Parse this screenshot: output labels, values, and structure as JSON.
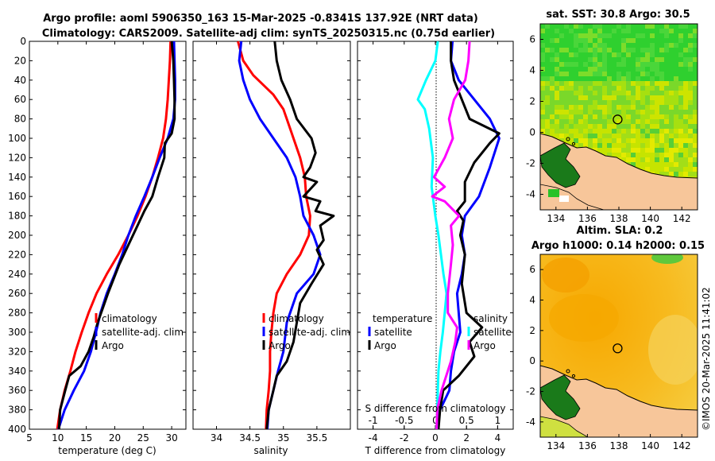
{
  "title_line1": "Argo profile: aoml 5906350_163 15-Mar-2025 -0.8341S 137.92E (NRT data)",
  "title_line2": "Climatology: CARS2009. Satellite-adj clim: synTS_20250315.nc (0.75d earlier)",
  "copyright": "©IMOS 20-Mar-2025 11:41:02",
  "colors": {
    "red": "#ff0000",
    "blue": "#0000ff",
    "black": "#000000",
    "cyan": "#00ffff",
    "magenta": "#ff00ff",
    "land": "#f7c69a"
  },
  "chart_data": [
    {
      "id": "temperature",
      "type": "line",
      "xlabel": "temperature (deg C)",
      "ylim": [
        400,
        0
      ],
      "xlim": [
        5,
        32.5
      ],
      "xticks": [
        5,
        10,
        15,
        20,
        25,
        30
      ],
      "yticks": [
        0,
        20,
        40,
        60,
        80,
        100,
        120,
        140,
        160,
        180,
        200,
        220,
        240,
        260,
        280,
        300,
        320,
        340,
        360,
        380,
        400
      ],
      "legend": [
        "climatology",
        "satellite-adj. clim",
        "Argo"
      ],
      "series": [
        {
          "name": "climatology",
          "color": "red",
          "points": [
            [
              29.8,
              0
            ],
            [
              29.7,
              20
            ],
            [
              29.5,
              40
            ],
            [
              29.3,
              60
            ],
            [
              29.0,
              80
            ],
            [
              28.5,
              100
            ],
            [
              27.6,
              120
            ],
            [
              26.6,
              140
            ],
            [
              25.4,
              160
            ],
            [
              24.0,
              180
            ],
            [
              22.4,
              200
            ],
            [
              20.6,
              220
            ],
            [
              18.6,
              240
            ],
            [
              16.8,
              260
            ],
            [
              15.4,
              280
            ],
            [
              14.2,
              300
            ],
            [
              13.1,
              320
            ],
            [
              12.2,
              340
            ],
            [
              11.2,
              360
            ],
            [
              10.4,
              380
            ],
            [
              9.9,
              400
            ]
          ]
        },
        {
          "name": "satellite-adj. clim",
          "color": "blue",
          "points": [
            [
              30.4,
              0
            ],
            [
              30.5,
              20
            ],
            [
              30.6,
              40
            ],
            [
              30.6,
              60
            ],
            [
              30.3,
              80
            ],
            [
              29.3,
              100
            ],
            [
              27.9,
              120
            ],
            [
              26.6,
              140
            ],
            [
              25.2,
              160
            ],
            [
              23.7,
              180
            ],
            [
              22.4,
              200
            ],
            [
              21.3,
              220
            ],
            [
              20.0,
              240
            ],
            [
              18.6,
              260
            ],
            [
              17.5,
              280
            ],
            [
              16.7,
              300
            ],
            [
              15.8,
              320
            ],
            [
              14.6,
              340
            ],
            [
              12.8,
              360
            ],
            [
              11.2,
              380
            ],
            [
              10.1,
              400
            ]
          ]
        },
        {
          "name": "Argo",
          "color": "black",
          "points": [
            [
              30.0,
              0
            ],
            [
              30.3,
              20
            ],
            [
              30.4,
              40
            ],
            [
              30.5,
              60
            ],
            [
              30.5,
              80
            ],
            [
              30.0,
              95
            ],
            [
              28.8,
              105
            ],
            [
              28.7,
              120
            ],
            [
              27.6,
              140
            ],
            [
              26.6,
              160
            ],
            [
              25.2,
              175
            ],
            [
              24.0,
              190
            ],
            [
              22.4,
              210
            ],
            [
              20.8,
              230
            ],
            [
              18.8,
              260
            ],
            [
              17.0,
              290
            ],
            [
              16.3,
              305
            ],
            [
              15.4,
              320
            ],
            [
              14.0,
              335
            ],
            [
              12.0,
              345
            ],
            [
              11.3,
              360
            ],
            [
              10.4,
              380
            ],
            [
              10.2,
              400
            ]
          ]
        }
      ]
    },
    {
      "id": "salinity",
      "type": "line",
      "xlabel": "salinity",
      "ylim": [
        400,
        0
      ],
      "xlim": [
        33.65,
        36.0
      ],
      "xticks": [
        34,
        34.5,
        35,
        35.5
      ],
      "yticks": [
        0,
        20,
        40,
        60,
        80,
        100,
        120,
        140,
        160,
        180,
        200,
        220,
        240,
        260,
        280,
        300,
        320,
        340,
        360,
        380,
        400
      ],
      "legend": [
        "climatology",
        "satellite-adj. clim",
        "Argo"
      ],
      "series": [
        {
          "name": "climatology",
          "color": "red",
          "points": [
            [
              34.32,
              0
            ],
            [
              34.4,
              20
            ],
            [
              34.55,
              35
            ],
            [
              34.85,
              55
            ],
            [
              35.0,
              70
            ],
            [
              35.05,
              80
            ],
            [
              35.15,
              100
            ],
            [
              35.25,
              120
            ],
            [
              35.32,
              140
            ],
            [
              35.34,
              160
            ],
            [
              35.4,
              180
            ],
            [
              35.38,
              200
            ],
            [
              35.25,
              220
            ],
            [
              35.05,
              240
            ],
            [
              34.9,
              260
            ],
            [
              34.85,
              280
            ],
            [
              34.82,
              300
            ],
            [
              34.8,
              320
            ],
            [
              34.8,
              340
            ],
            [
              34.78,
              360
            ],
            [
              34.75,
              380
            ],
            [
              34.74,
              400
            ]
          ]
        },
        {
          "name": "satellite-adj. clim",
          "color": "blue",
          "points": [
            [
              34.37,
              0
            ],
            [
              34.34,
              20
            ],
            [
              34.4,
              40
            ],
            [
              34.5,
              60
            ],
            [
              34.65,
              80
            ],
            [
              34.85,
              100
            ],
            [
              35.05,
              120
            ],
            [
              35.18,
              140
            ],
            [
              35.25,
              160
            ],
            [
              35.3,
              180
            ],
            [
              35.45,
              200
            ],
            [
              35.55,
              220
            ],
            [
              35.45,
              240
            ],
            [
              35.2,
              260
            ],
            [
              35.05,
              290
            ],
            [
              35.0,
              320
            ],
            [
              34.92,
              340
            ],
            [
              34.85,
              360
            ],
            [
              34.78,
              380
            ],
            [
              34.76,
              400
            ]
          ]
        },
        {
          "name": "Argo",
          "color": "black",
          "points": [
            [
              34.87,
              0
            ],
            [
              34.9,
              20
            ],
            [
              34.97,
              40
            ],
            [
              35.1,
              60
            ],
            [
              35.2,
              80
            ],
            [
              35.42,
              100
            ],
            [
              35.48,
              115
            ],
            [
              35.4,
              130
            ],
            [
              35.3,
              140
            ],
            [
              35.5,
              145
            ],
            [
              35.3,
              160
            ],
            [
              35.55,
              165
            ],
            [
              35.48,
              175
            ],
            [
              35.75,
              180
            ],
            [
              35.55,
              190
            ],
            [
              35.6,
              205
            ],
            [
              35.5,
              215
            ],
            [
              35.6,
              230
            ],
            [
              35.42,
              250
            ],
            [
              35.25,
              270
            ],
            [
              35.2,
              290
            ],
            [
              35.15,
              310
            ],
            [
              35.05,
              330
            ],
            [
              34.9,
              345
            ],
            [
              34.85,
              360
            ],
            [
              34.78,
              380
            ],
            [
              34.75,
              400
            ]
          ]
        }
      ]
    },
    {
      "id": "differences",
      "type": "line",
      "xlabel": "T difference from climatology",
      "top_axis_label": "S difference from climatology",
      "ylim": [
        400,
        0
      ],
      "xlim_T": [
        -5,
        5
      ],
      "xticks_T": [
        -4,
        -2,
        0,
        2,
        4
      ],
      "xlim_S": [
        -1.25,
        1.25
      ],
      "xticks_S": [
        "-1",
        "-0.5",
        "0",
        "0.5",
        "1"
      ],
      "legend_titles": [
        "temperature",
        "salinity"
      ],
      "legend_t": [
        "satellite",
        "Argo"
      ],
      "legend_s": [
        "satellite",
        "Argo"
      ],
      "series": [
        {
          "name": "T satellite",
          "color": "blue",
          "axis": "T",
          "points": [
            [
              1.1,
              0
            ],
            [
              1.0,
              20
            ],
            [
              1.5,
              40
            ],
            [
              2.5,
              60
            ],
            [
              3.5,
              80
            ],
            [
              4.1,
              100
            ],
            [
              3.5,
              130
            ],
            [
              2.8,
              160
            ],
            [
              1.9,
              180
            ],
            [
              1.7,
              200
            ],
            [
              1.9,
              220
            ],
            [
              1.7,
              240
            ],
            [
              1.4,
              260
            ],
            [
              1.5,
              280
            ],
            [
              1.6,
              300
            ],
            [
              1.2,
              320
            ],
            [
              1.0,
              340
            ],
            [
              0.9,
              360
            ],
            [
              0.3,
              380
            ],
            [
              0.1,
              400
            ]
          ]
        },
        {
          "name": "T Argo",
          "color": "black",
          "axis": "T",
          "points": [
            [
              1.0,
              0
            ],
            [
              1.0,
              20
            ],
            [
              1.2,
              40
            ],
            [
              1.7,
              60
            ],
            [
              2.2,
              80
            ],
            [
              4.1,
              95
            ],
            [
              3.5,
              105
            ],
            [
              2.5,
              125
            ],
            [
              1.9,
              145
            ],
            [
              1.9,
              165
            ],
            [
              1.4,
              175
            ],
            [
              1.8,
              185
            ],
            [
              1.6,
              200
            ],
            [
              1.9,
              220
            ],
            [
              1.7,
              250
            ],
            [
              2.0,
              280
            ],
            [
              3.0,
              295
            ],
            [
              2.2,
              310
            ],
            [
              2.5,
              325
            ],
            [
              1.5,
              345
            ],
            [
              0.5,
              360
            ],
            [
              0.3,
              380
            ],
            [
              0.2,
              400
            ]
          ]
        },
        {
          "name": "S satellite",
          "color": "cyan",
          "axis": "S",
          "points": [
            [
              0.04,
              0
            ],
            [
              0.0,
              20
            ],
            [
              -0.15,
              40
            ],
            [
              -0.28,
              60
            ],
            [
              -0.17,
              70
            ],
            [
              -0.1,
              90
            ],
            [
              -0.04,
              120
            ],
            [
              -0.06,
              150
            ],
            [
              0.0,
              180
            ],
            [
              0.05,
              200
            ],
            [
              0.13,
              240
            ],
            [
              0.18,
              260
            ],
            [
              0.15,
              280
            ],
            [
              0.12,
              300
            ],
            [
              0.08,
              320
            ],
            [
              0.05,
              340
            ],
            [
              0.04,
              360
            ],
            [
              0.02,
              400
            ]
          ]
        },
        {
          "name": "S Argo",
          "color": "magenta",
          "axis": "S",
          "points": [
            [
              0.55,
              0
            ],
            [
              0.53,
              20
            ],
            [
              0.48,
              40
            ],
            [
              0.3,
              60
            ],
            [
              0.22,
              80
            ],
            [
              0.28,
              100
            ],
            [
              0.15,
              120
            ],
            [
              -0.02,
              140
            ],
            [
              0.15,
              150
            ],
            [
              -0.05,
              160
            ],
            [
              0.15,
              165
            ],
            [
              0.38,
              180
            ],
            [
              0.25,
              190
            ],
            [
              0.28,
              210
            ],
            [
              0.25,
              230
            ],
            [
              0.2,
              260
            ],
            [
              0.2,
              280
            ],
            [
              0.35,
              295
            ],
            [
              0.32,
              310
            ],
            [
              0.25,
              330
            ],
            [
              0.1,
              360
            ],
            [
              0.03,
              380
            ],
            [
              0.02,
              400
            ]
          ]
        }
      ]
    },
    {
      "id": "sst_map",
      "type": "heatmap",
      "title": "sat. SST: 30.8 Argo: 30.5",
      "xticks": [
        "134",
        "136",
        "138",
        "140",
        "142"
      ],
      "yticks": [
        "6",
        "4",
        "2",
        "0",
        "-2",
        "-4"
      ],
      "xlim": [
        133,
        143
      ],
      "ylim": [
        -5,
        7
      ],
      "marker": [
        137.92,
        0.83
      ]
    },
    {
      "id": "sla_map",
      "type": "heatmap",
      "title": "Altim. SLA: 0.2",
      "subtitle": "Argo h1000: 0.14 h2000: 0.15",
      "xticks": [
        "134",
        "136",
        "138",
        "140",
        "142"
      ],
      "yticks": [
        "6",
        "4",
        "2",
        "0",
        "-2",
        "-4"
      ],
      "xlim": [
        133,
        143
      ],
      "ylim": [
        -5,
        7
      ],
      "marker": [
        137.92,
        0.83
      ]
    }
  ]
}
